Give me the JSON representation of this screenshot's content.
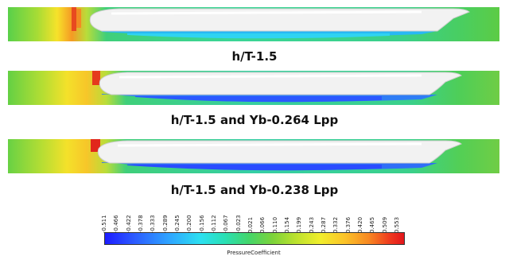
{
  "panels": [
    {
      "caption": "h/T-1.5"
    },
    {
      "caption": "h/T-1.5 and Yb-0.264 Lpp"
    },
    {
      "caption": "h/T-1.5 and Yb-0.238 Lpp"
    }
  ],
  "legend": {
    "title": "PressureCoefficient",
    "ticks": [
      "-0.511",
      "-0.466",
      "-0.422",
      "-0.378",
      "-0.333",
      "-0.289",
      "-0.245",
      "-0.200",
      "-0.156",
      "-0.112",
      "-0.067",
      "-0.023",
      "0.021",
      "0.066",
      "0.110",
      "0.154",
      "0.199",
      "0.243",
      "0.287",
      "0.332",
      "0.376",
      "0.420",
      "0.465",
      "0.509",
      "0.553"
    ],
    "colors": [
      "#1c1cff",
      "#2ea8ff",
      "#29e0b5",
      "#7cd33a",
      "#f1ee2c",
      "#f88a22",
      "#e3161c"
    ]
  }
}
